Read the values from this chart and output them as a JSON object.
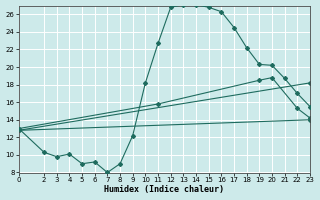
{
  "background_color": "#cdeaea",
  "grid_color": "#ffffff",
  "line_color": "#1e6b5e",
  "xlabel": "Humidex (Indice chaleur)",
  "xlim": [
    0,
    23
  ],
  "ylim": [
    8,
    27
  ],
  "yticks": [
    8,
    10,
    12,
    14,
    16,
    18,
    20,
    22,
    24,
    26
  ],
  "xticks": [
    0,
    2,
    3,
    4,
    5,
    6,
    7,
    8,
    9,
    10,
    11,
    12,
    13,
    14,
    15,
    16,
    17,
    18,
    19,
    20,
    21,
    22,
    23
  ],
  "line1_x": [
    0,
    2,
    3,
    4,
    5,
    6,
    7,
    8,
    9,
    10,
    11,
    12,
    13,
    14,
    15,
    16,
    17,
    18,
    19,
    20,
    21,
    22,
    23
  ],
  "line1_y": [
    13.0,
    10.3,
    9.8,
    10.1,
    9.0,
    9.2,
    8.0,
    9.0,
    12.2,
    18.2,
    22.7,
    26.8,
    27.1,
    27.1,
    26.8,
    26.3,
    24.5,
    22.2,
    20.3,
    20.2,
    18.7,
    17.0,
    15.5
  ],
  "line2_x": [
    0,
    11,
    19,
    20,
    22,
    23
  ],
  "line2_y": [
    13.0,
    15.8,
    18.5,
    18.8,
    15.3,
    14.2
  ],
  "line3_x": [
    0,
    23
  ],
  "line3_y": [
    12.8,
    18.2
  ],
  "line4_x": [
    0,
    23
  ],
  "line4_y": [
    12.8,
    14.0
  ],
  "markersize": 2.0
}
